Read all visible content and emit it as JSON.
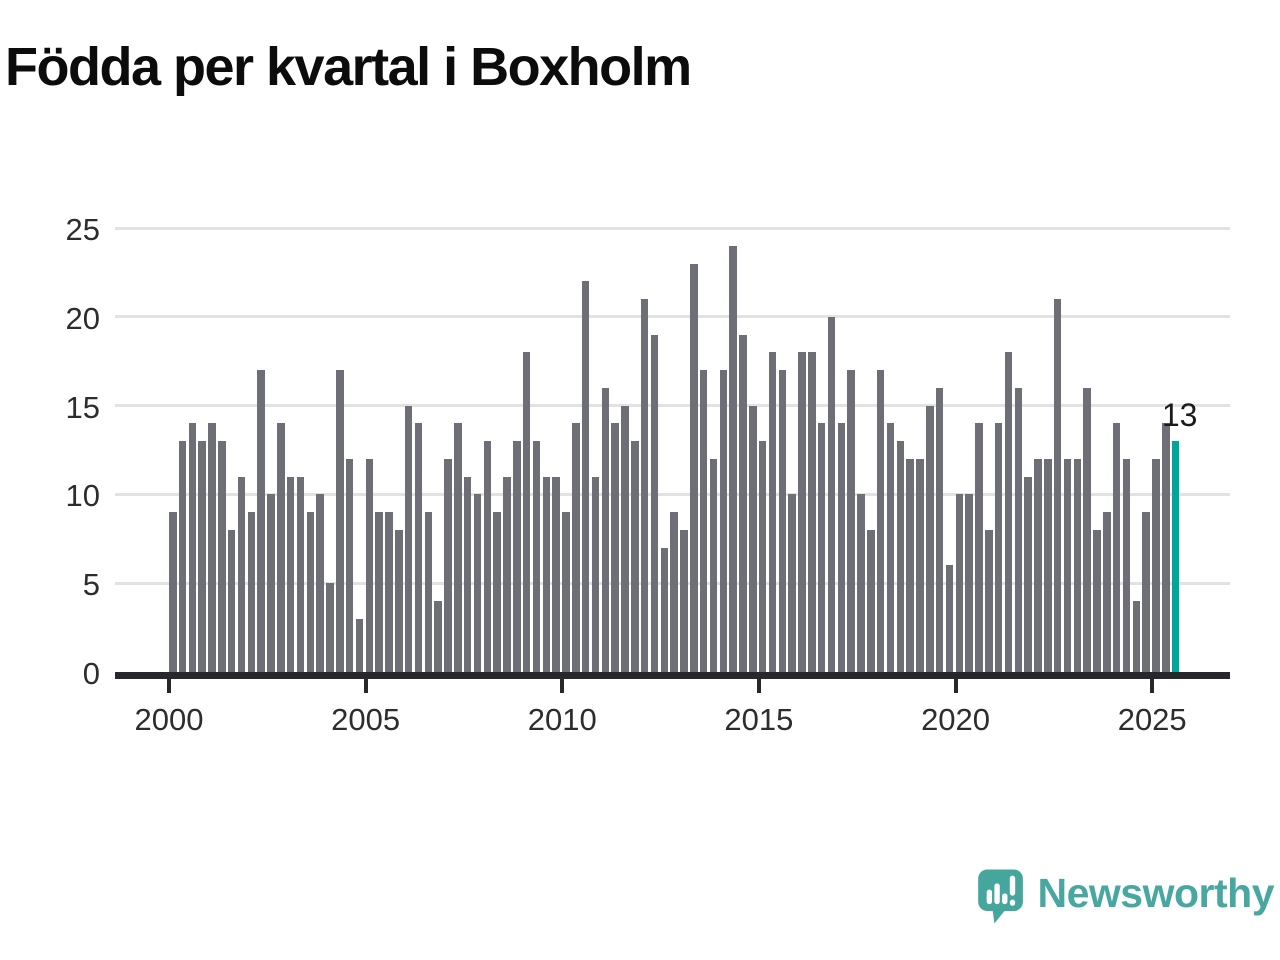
{
  "title": "Födda per kvartal i Boxholm",
  "branding": {
    "name": "Newsworthy"
  },
  "annotation": {
    "label": "13"
  },
  "colors": {
    "bar": "#6e6e77",
    "highlight": "#00a69b",
    "axis": "#27272c",
    "gridline": "#e2e2e4",
    "brand_teal": "#48a7a0"
  },
  "chart_data": {
    "type": "bar",
    "title": "Födda per kvartal i Boxholm",
    "x_start": "2000 Q1",
    "x_end": "2025 Q3",
    "frequency": "quarterly",
    "xlabel": "",
    "ylabel": "",
    "ylim": [
      0,
      25
    ],
    "grid": "horizontal",
    "y_ticks": [
      0,
      5,
      10,
      15,
      20,
      25
    ],
    "x_ticks": [
      "2000",
      "2005",
      "2010",
      "2015",
      "2020",
      "2025"
    ],
    "values": [
      9,
      13,
      14,
      13,
      14,
      13,
      8,
      11,
      9,
      17,
      10,
      14,
      11,
      11,
      9,
      10,
      5,
      17,
      12,
      3,
      12,
      9,
      9,
      8,
      15,
      14,
      9,
      4,
      12,
      14,
      11,
      10,
      13,
      9,
      11,
      13,
      18,
      13,
      11,
      11,
      9,
      14,
      22,
      11,
      16,
      14,
      15,
      13,
      21,
      19,
      7,
      9,
      8,
      23,
      17,
      12,
      17,
      24,
      19,
      15,
      13,
      18,
      17,
      10,
      18,
      18,
      14,
      20,
      14,
      17,
      10,
      8,
      17,
      14,
      13,
      12,
      12,
      15,
      16,
      6,
      10,
      10,
      14,
      8,
      14,
      18,
      16,
      11,
      12,
      12,
      21,
      12,
      12,
      16,
      8,
      9,
      14,
      12,
      4,
      9,
      12,
      14,
      13
    ],
    "highlight_index": 102,
    "highlight": {
      "x": "2025 Q3",
      "value": 13,
      "label": "13"
    }
  }
}
